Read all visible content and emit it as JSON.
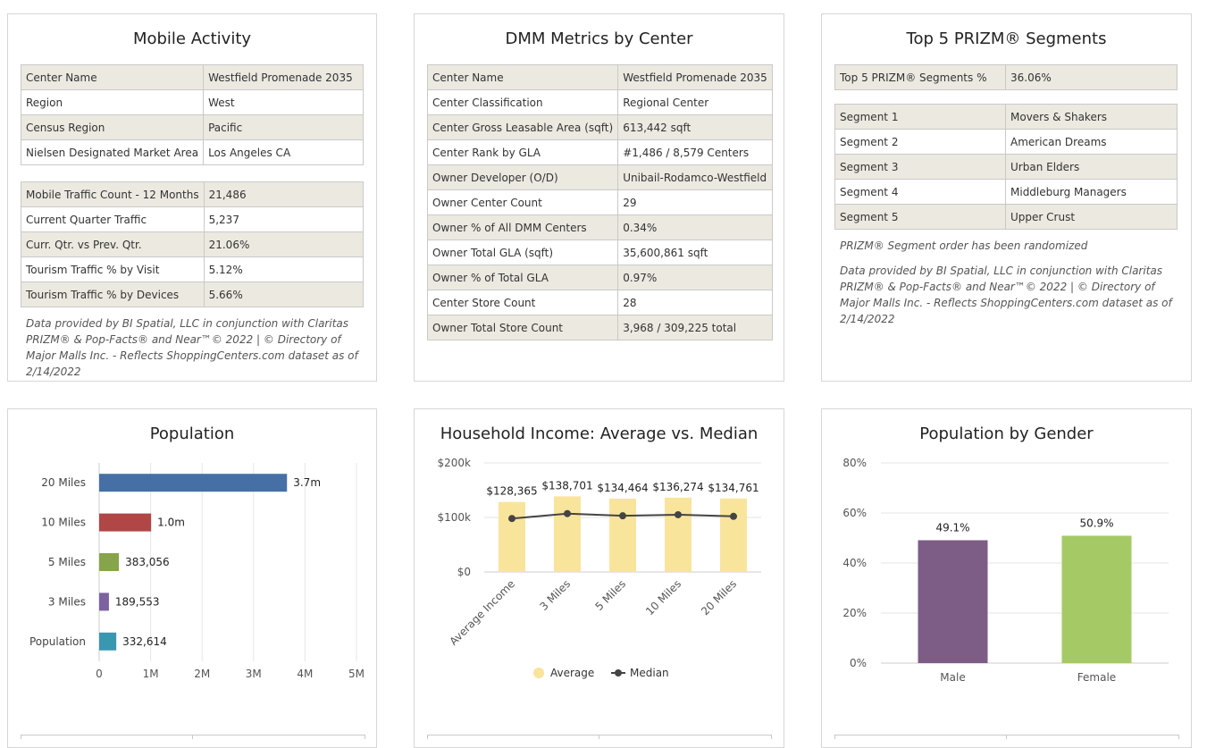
{
  "mobile_activity": {
    "title": "Mobile Activity",
    "table1": [
      {
        "k": "Center Name",
        "v": "Westfield Promenade 2035"
      },
      {
        "k": "Region",
        "v": "West"
      },
      {
        "k": "Census Region",
        "v": "Pacific"
      },
      {
        "k": "Nielsen Designated Market Area",
        "v": "Los Angeles CA"
      }
    ],
    "table2": [
      {
        "k": "Mobile Traffic Count - 12 Months",
        "v": "21,486"
      },
      {
        "k": "Current Quarter Traffic",
        "v": "5,237"
      },
      {
        "k": "Curr. Qtr. vs Prev. Qtr.",
        "v": "21.06%"
      },
      {
        "k": "Tourism Traffic % by Visit",
        "v": "5.12%"
      },
      {
        "k": "Tourism Traffic % by Devices",
        "v": "5.66%"
      }
    ],
    "note": "Data provided by BI Spatial, LLC in conjunction with Claritas PRIZM® & Pop-Facts® and Near™© 2022 | © Directory of Major Malls Inc. - Reflects ShoppingCenters.com dataset as of 2/14/2022"
  },
  "dmm_metrics": {
    "title": "DMM Metrics by Center",
    "table": [
      {
        "k": "Center Name",
        "v": "Westfield Promenade 2035"
      },
      {
        "k": "Center Classification",
        "v": "Regional Center"
      },
      {
        "k": "Center Gross Leasable Area (sqft)",
        "v": "613,442 sqft"
      },
      {
        "k": "Center Rank by GLA",
        "v": "#1,486 / 8,579 Centers"
      },
      {
        "k": "Owner Developer (O/D)",
        "v": "Unibail-Rodamco-Westfield"
      },
      {
        "k": "Owner Center Count",
        "v": "29"
      },
      {
        "k": "Owner % of All DMM Centers",
        "v": "0.34%"
      },
      {
        "k": "Owner Total GLA (sqft)",
        "v": "35,600,861 sqft"
      },
      {
        "k": "Owner % of Total GLA",
        "v": "0.97%"
      },
      {
        "k": "Center Store Count",
        "v": "28"
      },
      {
        "k": "Owner Total Store Count",
        "v": "3,968 / 309,225 total"
      }
    ]
  },
  "prizm": {
    "title": "Top 5 PRIZM® Segments",
    "summary": [
      {
        "k": "Top 5 PRIZM® Segments %",
        "v": "36.06%"
      }
    ],
    "segments": [
      {
        "k": "Segment 1",
        "v": "Movers & Shakers"
      },
      {
        "k": "Segment 2",
        "v": "American Dreams"
      },
      {
        "k": "Segment 3",
        "v": "Urban Elders"
      },
      {
        "k": "Segment 4",
        "v": "Middleburg Managers"
      },
      {
        "k": "Segment 5",
        "v": "Upper Crust"
      }
    ],
    "randomized_note": "PRIZM® Segment order has been randomized",
    "note": "Data provided by BI Spatial, LLC in conjunction with Claritas PRIZM® & Pop-Facts® and Near™© 2022 | © Directory of Major Malls Inc. - Reflects ShoppingCenters.com dataset as of 2/14/2022"
  },
  "chart_data": [
    {
      "type": "bar",
      "orientation": "horizontal",
      "title": "Population",
      "categories": [
        "20 Miles",
        "10 Miles",
        "5 Miles",
        "3 Miles",
        "Population"
      ],
      "values": [
        3650000,
        1010000,
        383056,
        189553,
        332614
      ],
      "data_labels": [
        "3.7m",
        "1.0m",
        "383,056",
        "189,553",
        "332,614"
      ],
      "colors": [
        "#4670a5",
        "#b04646",
        "#86a54a",
        "#7c62a0",
        "#3a97b0"
      ],
      "xlim": [
        0,
        5000000
      ],
      "x_ticks": [
        "0",
        "1M",
        "2M",
        "3M",
        "4M",
        "5M"
      ],
      "grid": true
    },
    {
      "type": "bar",
      "title": "Household Income: Average vs. Median",
      "categories": [
        "Average Income",
        "3 Miles",
        "5 Miles",
        "10 Miles",
        "20 Miles"
      ],
      "series": [
        {
          "name": "Average",
          "type": "bar",
          "color": "#f9e49c",
          "values": [
            128365,
            138701,
            134464,
            136274,
            134761
          ]
        },
        {
          "name": "Median",
          "type": "line",
          "color": "#444444",
          "values": [
            98000,
            107000,
            103000,
            105000,
            102000
          ]
        }
      ],
      "data_labels": [
        "$128,365",
        "$138,701",
        "$134,464",
        "$136,274",
        "$134,761"
      ],
      "ylim": [
        0,
        200000
      ],
      "y_ticks": [
        "$0",
        "$100k",
        "$200k"
      ],
      "legend": "bottom",
      "grid": true
    },
    {
      "type": "bar",
      "title": "Population by Gender",
      "categories": [
        "Male",
        "Female"
      ],
      "values": [
        49.1,
        50.9
      ],
      "data_labels": [
        "49.1%",
        "50.9%"
      ],
      "colors": [
        "#7d5c86",
        "#a5c965"
      ],
      "ylim": [
        0,
        80
      ],
      "y_ticks": [
        "0%",
        "20%",
        "40%",
        "60%",
        "80%"
      ],
      "grid": true
    }
  ]
}
